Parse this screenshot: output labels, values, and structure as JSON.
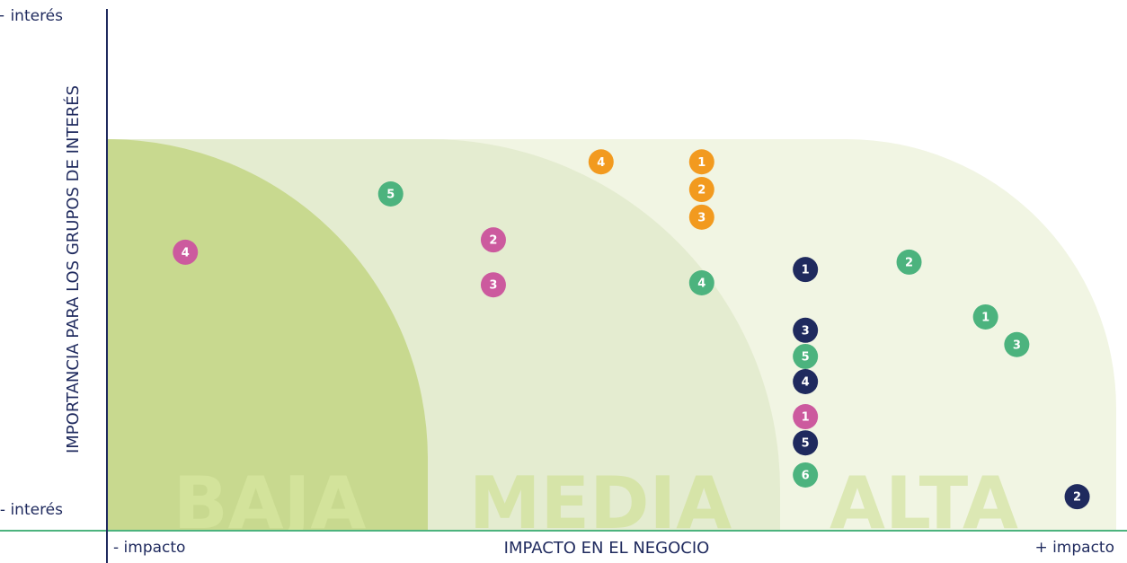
{
  "chart_data": {
    "type": "scatter",
    "xlabel": "IMPACTO EN EL NEGOCIO",
    "ylabel": "IMPORTANCIA PARA LOS GRUPOS DE INTERÉS",
    "xlim": [
      0,
      100
    ],
    "ylim": [
      0,
      100
    ],
    "xticks": [
      {
        "value": 0,
        "label": "- impacto"
      },
      {
        "value": 100,
        "label": "+ impacto"
      }
    ],
    "yticks": [
      {
        "value": 0,
        "label": "- interés"
      },
      {
        "value": 100,
        "label": "+ interés"
      }
    ],
    "zones": [
      "BAJA",
      "MEDIA",
      "ALTA"
    ],
    "series": [
      {
        "color": "#cc5a9e",
        "labels": [
          "4",
          "2",
          "3",
          "1"
        ],
        "x": [
          7.7,
          38.3,
          38.3,
          69.3
        ],
        "values": [
          52.2,
          54.7,
          45.6,
          18.9
        ]
      },
      {
        "color": "#f29a1f",
        "labels": [
          "4",
          "1",
          "2",
          "3"
        ],
        "x": [
          49.0,
          59.0,
          59.0,
          59.0
        ],
        "values": [
          70.5,
          70.5,
          64.9,
          59.3
        ]
      },
      {
        "color": "#4cb37e",
        "labels": [
          "5",
          "4",
          "2",
          "1",
          "3",
          "5",
          "6"
        ],
        "x": [
          28.1,
          59.0,
          79.6,
          87.2,
          90.3,
          69.3,
          69.3
        ],
        "values": [
          64.0,
          46.0,
          50.2,
          39.1,
          33.5,
          31.1,
          7.1
        ]
      },
      {
        "color": "#1f2a5e",
        "labels": [
          "1",
          "3",
          "4",
          "5",
          "2"
        ],
        "x": [
          69.3,
          69.3,
          69.3,
          69.3,
          96.3
        ],
        "values": [
          48.7,
          36.4,
          26.0,
          13.6,
          2.7
        ]
      }
    ]
  }
}
